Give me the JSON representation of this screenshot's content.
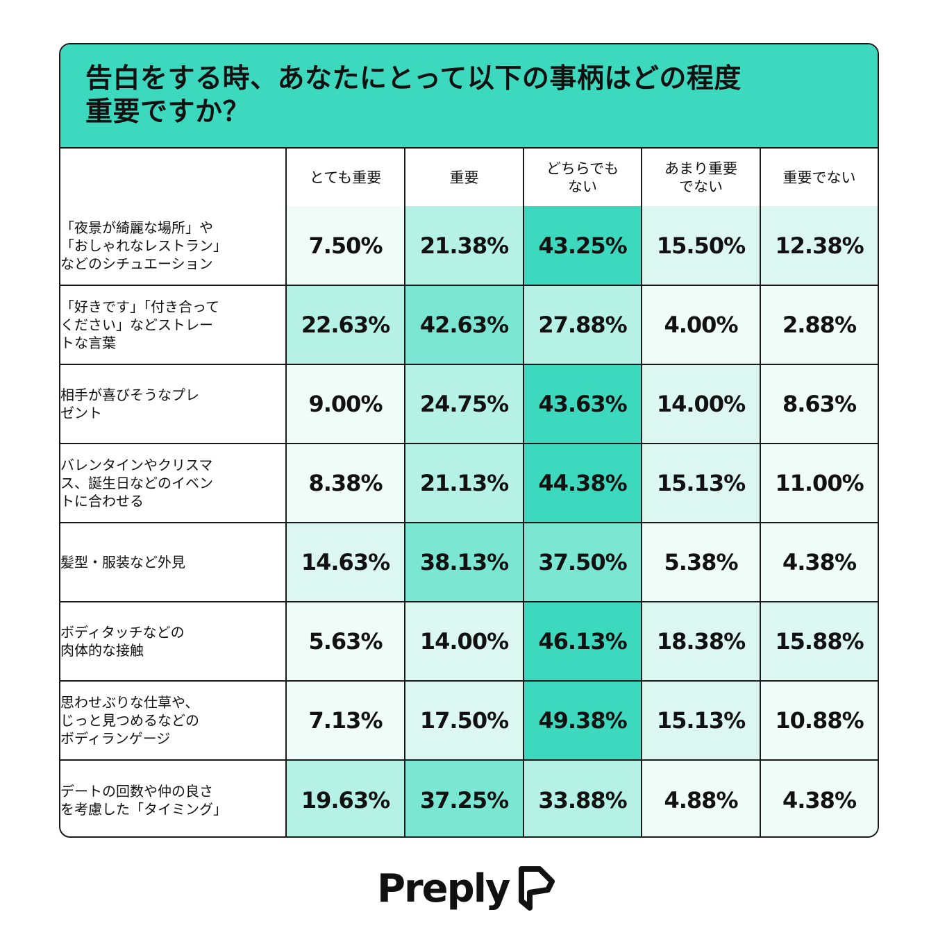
{
  "title": "告白をする時、あなたにとって以下の事柄はどの程度\n重要ですか？",
  "colors": {
    "title_bg": "#3dd9be",
    "scale": [
      "#effcf8",
      "#dbf7f0",
      "#b5f1e4",
      "#7be7d2",
      "#3dd9be"
    ]
  },
  "brand": {
    "name": "Preply",
    "logo_icon": "preply-logo-icon"
  },
  "chart_data": {
    "type": "table",
    "title": "告白をする時、あなたにとって以下の事柄はどの程度\n重要ですか？",
    "columns": [
      "とても重要",
      "重要",
      "どちらでも\nない",
      "あまり重要\nでない",
      "重要でない"
    ],
    "rows": [
      {
        "label": "「夜景が綺麗な場所」や\n「おしゃれなレストラン」\nなどのシチュエーション",
        "values": [
          7.5,
          21.38,
          43.25,
          15.5,
          12.38
        ],
        "display": [
          "7.50%",
          "21.38%",
          "43.25%",
          "15.50%",
          "12.38%"
        ]
      },
      {
        "label": "「好きです」「付き合って\nください」などストレー\nトな言葉",
        "values": [
          22.63,
          42.63,
          27.88,
          4.0,
          2.88
        ],
        "display": [
          "22.63%",
          "42.63%",
          "27.88%",
          "4.00%",
          "2.88%"
        ]
      },
      {
        "label": "相手が喜びそうなプレ\nゼント",
        "values": [
          9.0,
          24.75,
          43.63,
          14.0,
          8.63
        ],
        "display": [
          "9.00%",
          "24.75%",
          "43.63%",
          "14.00%",
          "8.63%"
        ]
      },
      {
        "label": "バレンタインやクリスマ\nス、誕生日などのイベン\nトに合わせる",
        "values": [
          8.38,
          21.13,
          44.38,
          15.13,
          11.0
        ],
        "display": [
          "8.38%",
          "21.13%",
          "44.38%",
          "15.13%",
          "11.00%"
        ]
      },
      {
        "label": "髪型・服装など外見",
        "values": [
          14.63,
          38.13,
          37.5,
          5.38,
          4.38
        ],
        "display": [
          "14.63%",
          "38.13%",
          "37.50%",
          "5.38%",
          "4.38%"
        ]
      },
      {
        "label": "ボディタッチなどの\n肉体的な接触",
        "values": [
          5.63,
          14.0,
          46.13,
          18.38,
          15.88
        ],
        "display": [
          "5.63%",
          "14.00%",
          "46.13%",
          "18.38%",
          "15.88%"
        ]
      },
      {
        "label": "思わせぶりな仕草や、\nじっと見つめるなどの\nボディランゲージ",
        "values": [
          7.13,
          17.5,
          49.38,
          15.13,
          10.88
        ],
        "display": [
          "7.13%",
          "17.50%",
          "49.38%",
          "15.13%",
          "10.88%"
        ]
      },
      {
        "label": "デートの回数や仲の良さ\nを考慮した「タイミング」",
        "values": [
          19.63,
          37.25,
          33.88,
          4.88,
          4.38
        ],
        "display": [
          "19.63%",
          "37.25%",
          "33.88%",
          "4.88%",
          "4.38%"
        ]
      }
    ]
  }
}
